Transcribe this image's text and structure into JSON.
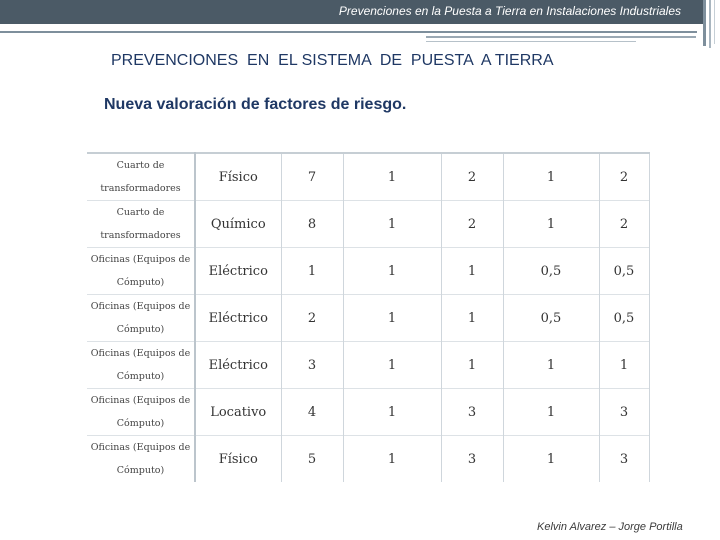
{
  "header": {
    "title": "Prevenciones en la Puesta a Tierra en Instalaciones Industriales"
  },
  "slide": {
    "heading": "PREVENCIONES  EN  EL SISTEMA  DE  PUESTA  A TIERRA",
    "subheading": "Nueva valoración de factores de riesgo."
  },
  "table": {
    "rows": [
      {
        "area": "Cuarto de transformadores",
        "factor": "Físico",
        "values": [
          "7",
          "1",
          "2",
          "1",
          "2"
        ]
      },
      {
        "area": "Cuarto de transformadores",
        "factor": "Químico",
        "values": [
          "8",
          "1",
          "2",
          "1",
          "2"
        ]
      },
      {
        "area": "Oficinas (Equipos de Cómputo)",
        "factor": "Eléctrico",
        "values": [
          "1",
          "1",
          "1",
          "0,5",
          "0,5"
        ]
      },
      {
        "area": "Oficinas (Equipos de Cómputo)",
        "factor": "Eléctrico",
        "values": [
          "2",
          "1",
          "1",
          "0,5",
          "0,5"
        ]
      },
      {
        "area": "Oficinas (Equipos de Cómputo)",
        "factor": "Eléctrico",
        "values": [
          "3",
          "1",
          "1",
          "1",
          "1"
        ]
      },
      {
        "area": "Oficinas (Equipos de Cómputo)",
        "factor": "Locativo",
        "values": [
          "4",
          "1",
          "3",
          "1",
          "3"
        ]
      },
      {
        "area": "Oficinas (Equipos de Cómputo)",
        "factor": "Físico",
        "values": [
          "5",
          "1",
          "3",
          "1",
          "3"
        ]
      }
    ]
  },
  "footer": {
    "authors": "Kelvin Alvarez – Jorge Portilla"
  },
  "colors": {
    "topbar": "#4b5a66",
    "heading": "#1f3864"
  }
}
